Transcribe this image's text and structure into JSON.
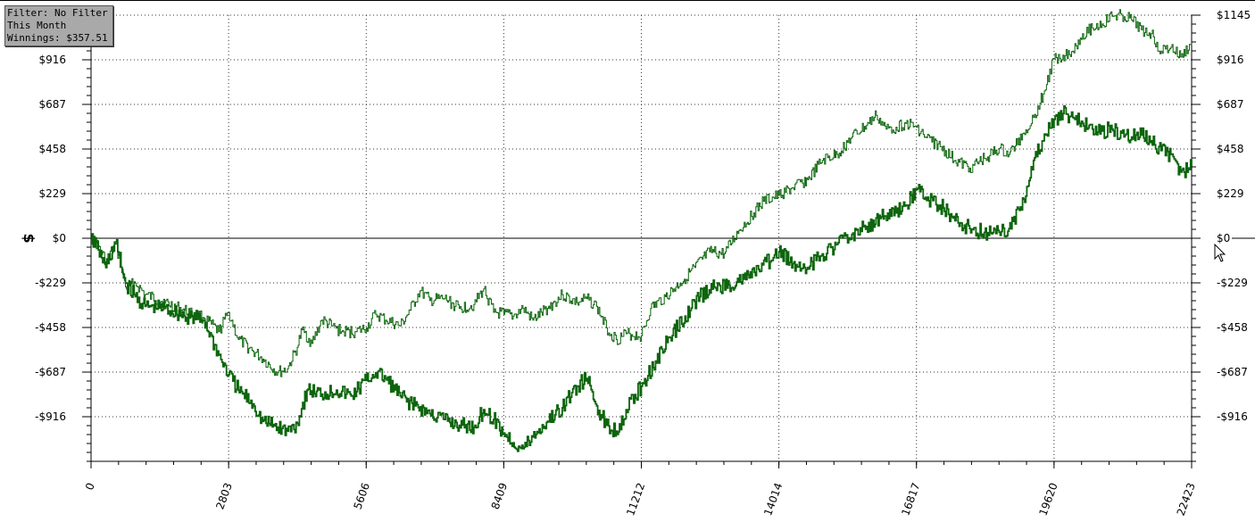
{
  "info_box": {
    "filter": "Filter: No Filter",
    "period": "This Month",
    "winnings": "Winnings: $357.51"
  },
  "colors": {
    "line": "#0d650d",
    "zero_line": "#000000",
    "grid": "#333333",
    "info_bg": "#a9a9a9"
  },
  "cursor_icon": "mouse-pointer-icon",
  "y_axis_icon": "dollar-sign-icon",
  "chart_data": {
    "type": "line",
    "title": "",
    "xlabel": "",
    "ylabel": "$",
    "xlim": [
      0,
      22423
    ],
    "ylim": [
      -1145,
      1145
    ],
    "grid": true,
    "x_ticks": [
      "0",
      "2803",
      "5606",
      "8409",
      "11212",
      "14014",
      "16817",
      "19620",
      "22423"
    ],
    "y_ticks": [
      {
        "value": 1145,
        "label": "$1145"
      },
      {
        "value": 916,
        "label": "$916"
      },
      {
        "value": 687,
        "label": "$687"
      },
      {
        "value": 458,
        "label": "$458"
      },
      {
        "value": 229,
        "label": "$229"
      },
      {
        "value": 0,
        "label": "$0"
      },
      {
        "value": -229,
        "label": "-$229"
      },
      {
        "value": -458,
        "label": "-$458"
      },
      {
        "value": -687,
        "label": "-$687"
      },
      {
        "value": -916,
        "label": "-$916"
      }
    ],
    "series": [
      {
        "style": "thin",
        "x": [
          0,
          150,
          300,
          500,
          700,
          900,
          1100,
          1500,
          1900,
          2300,
          2600,
          2803,
          3000,
          3300,
          3500,
          3800,
          4000,
          4200,
          4300,
          4500,
          4700,
          4900,
          5100,
          5400,
          5606,
          5800,
          6000,
          6300,
          6500,
          6700,
          6900,
          7200,
          7500,
          7800,
          8000,
          8200,
          8409,
          8600,
          8800,
          9000,
          9300,
          9600,
          9900,
          10100,
          10300,
          10500,
          10700,
          10900,
          11212,
          11400,
          11700,
          12000,
          12300,
          12600,
          12900,
          13200,
          13500,
          13700,
          14014,
          14300,
          14600,
          14900,
          15200,
          15500,
          15800,
          16000,
          16200,
          16400,
          16600,
          16817,
          17000,
          17300,
          17600,
          17900,
          18200,
          18500,
          18700,
          19000,
          19200,
          19400,
          19620,
          19800,
          20000,
          20200,
          20400,
          20600,
          20800,
          21000,
          21200,
          21400,
          21600,
          21800,
          22000,
          22200,
          22423
        ],
        "y": [
          0,
          -40,
          -120,
          -30,
          -250,
          -230,
          -290,
          -330,
          -370,
          -410,
          -480,
          -380,
          -520,
          -580,
          -620,
          -690,
          -670,
          -560,
          -470,
          -540,
          -420,
          -450,
          -480,
          -480,
          -460,
          -390,
          -420,
          -450,
          -370,
          -270,
          -320,
          -310,
          -360,
          -340,
          -260,
          -380,
          -390,
          -400,
          -360,
          -420,
          -360,
          -290,
          -330,
          -310,
          -350,
          -460,
          -520,
          -490,
          -500,
          -360,
          -300,
          -230,
          -150,
          -70,
          -80,
          40,
          130,
          190,
          220,
          260,
          300,
          400,
          430,
          520,
          580,
          630,
          560,
          570,
          590,
          570,
          520,
          470,
          400,
          360,
          410,
          460,
          430,
          540,
          620,
          740,
          920,
          940,
          960,
          1050,
          1080,
          1100,
          1140,
          1145,
          1120,
          1070,
          1050,
          960,
          980,
          930,
          1000
        ]
      },
      {
        "style": "thick",
        "x": [
          0,
          150,
          300,
          500,
          700,
          900,
          1100,
          1500,
          1900,
          2300,
          2600,
          2803,
          3000,
          3300,
          3500,
          3800,
          4000,
          4200,
          4400,
          4700,
          5000,
          5300,
          5606,
          5800,
          6000,
          6300,
          6600,
          6900,
          7200,
          7500,
          7800,
          8000,
          8200,
          8409,
          8600,
          8800,
          9000,
          9300,
          9600,
          9900,
          10100,
          10300,
          10500,
          10700,
          10900,
          11212,
          11500,
          11800,
          12100,
          12400,
          12700,
          13000,
          13300,
          13600,
          13900,
          14014,
          14300,
          14600,
          14900,
          15200,
          15500,
          15800,
          16100,
          16400,
          16600,
          16817,
          17000,
          17300,
          17600,
          17900,
          18200,
          18500,
          18700,
          19000,
          19200,
          19400,
          19620,
          19800,
          20000,
          20200,
          20400,
          20600,
          20800,
          21000,
          21200,
          21400,
          21600,
          21800,
          22000,
          22200,
          22423
        ],
        "y": [
          0,
          -60,
          -150,
          -20,
          -230,
          -300,
          -350,
          -360,
          -400,
          -420,
          -600,
          -700,
          -780,
          -850,
          -940,
          -970,
          -990,
          -950,
          -780,
          -800,
          -780,
          -810,
          -730,
          -690,
          -720,
          -810,
          -860,
          -900,
          -930,
          -960,
          -970,
          -880,
          -930,
          -1000,
          -1050,
          -1080,
          -1020,
          -940,
          -870,
          -760,
          -720,
          -860,
          -960,
          -990,
          -880,
          -760,
          -630,
          -510,
          -400,
          -300,
          -250,
          -240,
          -210,
          -160,
          -100,
          -70,
          -130,
          -150,
          -80,
          -30,
          20,
          60,
          110,
          130,
          170,
          250,
          210,
          170,
          90,
          50,
          30,
          30,
          50,
          200,
          400,
          500,
          610,
          640,
          620,
          590,
          560,
          550,
          560,
          540,
          520,
          530,
          500,
          450,
          430,
          340,
          370
        ]
      }
    ]
  }
}
